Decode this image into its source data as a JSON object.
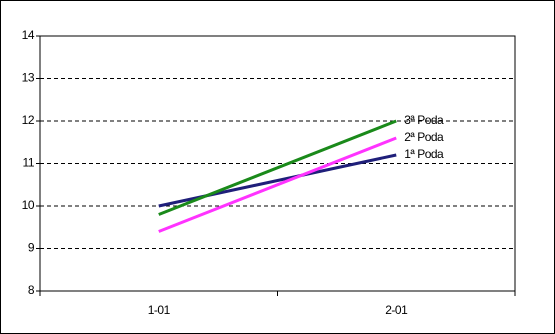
{
  "chart_data": {
    "type": "line",
    "categories": [
      "1-01",
      "2-01"
    ],
    "series": [
      {
        "name": "1ª Poda",
        "color": "#1f1f7a",
        "values": [
          10.0,
          11.2
        ]
      },
      {
        "name": "2ª Poda",
        "color": "#ff33ff",
        "values": [
          9.4,
          11.6
        ]
      },
      {
        "name": "3ª Poda",
        "color": "#1a8a1a",
        "values": [
          9.8,
          12.0
        ]
      }
    ],
    "ylim": [
      8,
      14
    ],
    "yticks": [
      8,
      9,
      10,
      11,
      12,
      13,
      14
    ],
    "grid": true
  }
}
